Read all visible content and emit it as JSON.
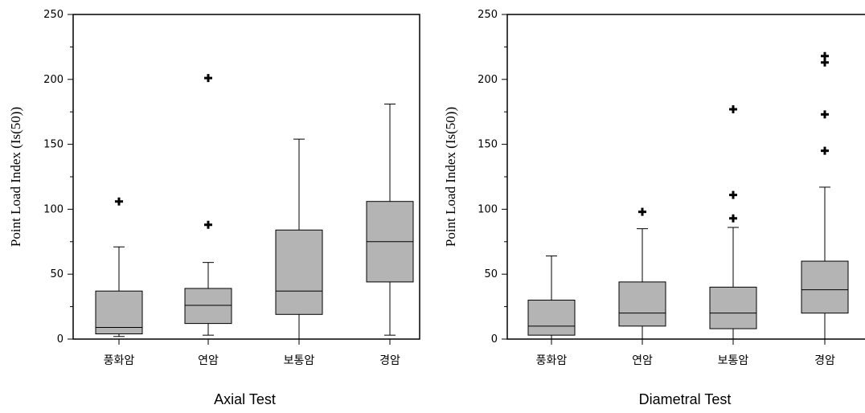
{
  "chart_data": [
    {
      "type": "box",
      "xlabel": "Axial Test",
      "ylabel": "Point Load Index (Is(50))",
      "ylim": [
        0,
        250
      ],
      "yticks": [
        0,
        50,
        100,
        150,
        200,
        250
      ],
      "categories": [
        "풍화암",
        "연암",
        "보통암",
        "경암"
      ],
      "boxes": [
        {
          "category": "풍화암",
          "whisker_low": 2,
          "q1": 4,
          "median": 9,
          "q3": 37,
          "whisker_high": 71,
          "outliers": [
            106
          ]
        },
        {
          "category": "연암",
          "whisker_low": 3,
          "q1": 12,
          "median": 26,
          "q3": 39,
          "whisker_high": 59,
          "outliers": [
            88,
            201
          ]
        },
        {
          "category": "보통암",
          "whisker_low": 0,
          "q1": 19,
          "median": 37,
          "q3": 84,
          "whisker_high": 154,
          "outliers": []
        },
        {
          "category": "경암",
          "whisker_low": 3,
          "q1": 44,
          "median": 75,
          "q3": 106,
          "whisker_high": 181,
          "outliers": []
        }
      ]
    },
    {
      "type": "box",
      "xlabel": "Diametral Test",
      "ylabel": "Point Load Index (Is(50))",
      "ylim": [
        0,
        250
      ],
      "yticks": [
        0,
        50,
        100,
        150,
        200,
        250
      ],
      "categories": [
        "풍화암",
        "연암",
        "보통암",
        "경암"
      ],
      "boxes": [
        {
          "category": "풍화암",
          "whisker_low": 0,
          "q1": 3,
          "median": 10,
          "q3": 30,
          "whisker_high": 64,
          "outliers": []
        },
        {
          "category": "연암",
          "whisker_low": 0,
          "q1": 10,
          "median": 20,
          "q3": 44,
          "whisker_high": 85,
          "outliers": [
            98
          ]
        },
        {
          "category": "보통암",
          "whisker_low": 0,
          "q1": 8,
          "median": 20,
          "q3": 40,
          "whisker_high": 86,
          "outliers": [
            93,
            111,
            177
          ]
        },
        {
          "category": "경암",
          "whisker_low": 0,
          "q1": 20,
          "median": 38,
          "q3": 60,
          "whisker_high": 117,
          "outliers": [
            145,
            173,
            213,
            218
          ]
        }
      ]
    }
  ],
  "colors": {
    "box_fill": "#b4b4b4",
    "stroke": "#000000"
  }
}
